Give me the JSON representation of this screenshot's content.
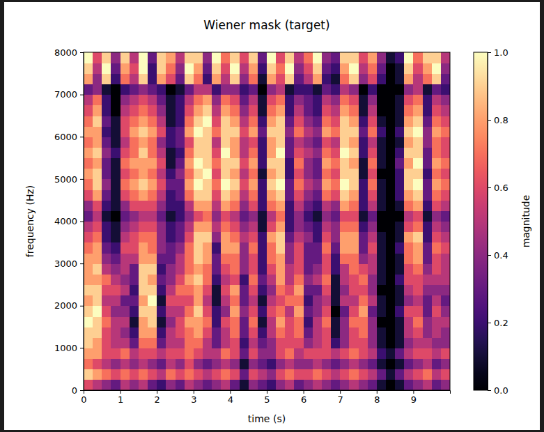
{
  "chart_data": {
    "type": "heatmap",
    "title": "Wiener mask (target)",
    "x_label": "time (s)",
    "y_label": "frequency (Hz)",
    "colorbar_label": "magnitude",
    "color": "magma",
    "xlim": [
      0,
      10
    ],
    "ylim": [
      0,
      8000
    ],
    "xticks": [
      0,
      1,
      2,
      3,
      4,
      5,
      6,
      7,
      8,
      9
    ],
    "yticks": [
      0,
      1000,
      2000,
      3000,
      4000,
      5000,
      6000,
      7000,
      8000
    ],
    "zlim": [
      0,
      1
    ],
    "zticks": [
      {
        "value": 0,
        "label": "0.0"
      },
      {
        "value": 0.2,
        "label": "0.2"
      },
      {
        "value": 0.4,
        "label": "0.4"
      },
      {
        "value": 0.6,
        "label": "0.6"
      },
      {
        "value": 0.8,
        "label": "0.8"
      },
      {
        "value": 1,
        "label": "1.0"
      }
    ],
    "x_edges": [
      0,
      0.25,
      0.5,
      0.75,
      1,
      1.25,
      1.5,
      1.75,
      2,
      2.25,
      2.5,
      2.75,
      3,
      3.25,
      3.5,
      3.75,
      4,
      4.25,
      4.5,
      4.75,
      5,
      5.25,
      5.5,
      5.75,
      6,
      6.25,
      6.5,
      6.75,
      7,
      7.25,
      7.5,
      7.75,
      8,
      8.25,
      8.5,
      8.75,
      9,
      9.25,
      9.5,
      9.75,
      10
    ],
    "y_edges": [
      0,
      250,
      500,
      750,
      1000,
      1250,
      1500,
      1750,
      2000,
      2250,
      2500,
      2750,
      3000,
      3250,
      3500,
      3750,
      4000,
      4250,
      4500,
      4750,
      5000,
      5250,
      5500,
      5750,
      6000,
      6250,
      6500,
      6750,
      7000,
      7250,
      7500,
      7750,
      8000
    ],
    "cells": [
      [
        0.6,
        0.5,
        0.4,
        0.3,
        0.5,
        0.4,
        0.5,
        0.3,
        0.2,
        0.4,
        0.3,
        0.5,
        0.4,
        0.3,
        0.4,
        0.5,
        0.3,
        0.1,
        0.4,
        0.3,
        0.2,
        0.4,
        0.5,
        0.3,
        0.4,
        0.5,
        0.4,
        0.3,
        0.4,
        0.5,
        0.4,
        0.3,
        0.1,
        0,
        0.1,
        0.3,
        0.4,
        0.5,
        0.3,
        0.4
      ],
      [
        0.9,
        0.8,
        0.7,
        0.6,
        0.7,
        0.6,
        0.7,
        0.6,
        0.5,
        0.7,
        0.6,
        0.7,
        0.6,
        0.5,
        0.6,
        0.7,
        0.6,
        0.3,
        0.6,
        0.5,
        0.4,
        0.6,
        0.7,
        0.6,
        0.6,
        0.7,
        0.6,
        0.5,
        0.6,
        0.7,
        0.6,
        0.5,
        0.3,
        0.1,
        0.3,
        0.5,
        0.6,
        0.7,
        0.5,
        0.6
      ],
      [
        0.7,
        0.6,
        0.5,
        0.4,
        0.5,
        0.4,
        0.5,
        0.4,
        0.3,
        0.5,
        0.4,
        0.6,
        0.4,
        0.3,
        0.4,
        0.5,
        0.4,
        0.1,
        0.4,
        0.3,
        0.2,
        0.4,
        0.5,
        0.4,
        0.4,
        0.5,
        0.4,
        0.3,
        0.4,
        0.5,
        0.4,
        0.3,
        0.1,
        0,
        0.1,
        0.3,
        0.4,
        0.5,
        0.3,
        0.4
      ],
      [
        0.8,
        0.8,
        0.6,
        0.6,
        0.7,
        0.5,
        0.6,
        0.6,
        0.5,
        0.6,
        0.6,
        0.7,
        0.6,
        0.5,
        0.5,
        0.7,
        0.6,
        0.3,
        0.6,
        0.4,
        0.4,
        0.6,
        0.7,
        0.5,
        0.6,
        0.6,
        0.6,
        0.5,
        0.6,
        0.7,
        0.6,
        0.5,
        0.2,
        0.1,
        0.3,
        0.5,
        0.6,
        0.6,
        0.5,
        0.6
      ],
      [
        0.9,
        0.8,
        0.6,
        0.5,
        0.5,
        0.3,
        0.7,
        0.7,
        0.3,
        0.5,
        0.5,
        0.7,
        0.7,
        0.5,
        0.3,
        0.5,
        0.6,
        0.2,
        0.5,
        0.3,
        0.4,
        0.6,
        0.6,
        0.6,
        0.4,
        0.5,
        0.6,
        0.2,
        0.4,
        0.6,
        0.6,
        0.4,
        0.1,
        0,
        0.1,
        0.4,
        0.5,
        0.5,
        0.4,
        0.4
      ],
      [
        0.9,
        0.9,
        0.6,
        0.5,
        0.4,
        0.2,
        0.8,
        0.8,
        0.2,
        0.5,
        0.6,
        0.7,
        0.8,
        0.6,
        0.3,
        0.5,
        0.7,
        0.3,
        0.6,
        0.2,
        0.5,
        0.7,
        0.6,
        0.7,
        0.3,
        0.5,
        0.6,
        0.1,
        0.4,
        0.6,
        0.7,
        0.4,
        0.1,
        0,
        0.1,
        0.5,
        0.6,
        0.4,
        0.5,
        0.4
      ],
      [
        1,
        0.9,
        0.7,
        0.5,
        0.5,
        0.1,
        0.8,
        0.9,
        0.1,
        0.4,
        0.6,
        0.8,
        0.8,
        0.7,
        0.2,
        0.6,
        0.7,
        0.3,
        0.7,
        0.1,
        0.5,
        0.8,
        0.6,
        0.7,
        0.2,
        0.5,
        0.7,
        0.1,
        0.4,
        0.7,
        0.7,
        0.4,
        0,
        0,
        0.1,
        0.5,
        0.7,
        0.4,
        0.5,
        0.5
      ],
      [
        0.9,
        1,
        0.6,
        0.4,
        0.4,
        0.2,
        0.9,
        0.9,
        0.2,
        0.5,
        0.5,
        0.7,
        0.9,
        0.6,
        0.2,
        0.4,
        0.8,
        0.4,
        0.6,
        0.2,
        0.6,
        0.7,
        0.5,
        0.8,
        0.3,
        0.4,
        0.6,
        0,
        0.3,
        0.6,
        0.8,
        0.3,
        0.1,
        0,
        0.2,
        0.6,
        0.6,
        0.3,
        0.6,
        0.4
      ],
      [
        0.8,
        0.9,
        0.5,
        0.5,
        0.3,
        0.3,
        0.8,
        1,
        0.1,
        0.6,
        0.6,
        0.6,
        0.8,
        0.5,
        0.1,
        0.5,
        0.7,
        0.3,
        0.5,
        0.1,
        0.5,
        0.6,
        0.7,
        0.7,
        0.2,
        0.4,
        0.5,
        0.1,
        0.5,
        0.5,
        0.7,
        0.5,
        0.1,
        0,
        0.1,
        0.4,
        0.5,
        0.3,
        0.5,
        0.3
      ],
      [
        0.9,
        0.9,
        0.6,
        0.6,
        0.5,
        0.2,
        0.9,
        0.9,
        0.2,
        0.5,
        0.7,
        0.7,
        0.8,
        0.6,
        0.1,
        0.6,
        0.8,
        0.3,
        0.6,
        0.2,
        0.4,
        0.7,
        0.6,
        0.8,
        0.3,
        0.3,
        0.6,
        0.1,
        0.4,
        0.6,
        0.6,
        0.4,
        0,
        0,
        0.1,
        0.5,
        0.6,
        0.4,
        0.4,
        0.4
      ],
      [
        0.8,
        0.8,
        0.7,
        0.5,
        0.4,
        0.3,
        0.9,
        0.8,
        0.3,
        0.4,
        0.6,
        0.8,
        0.9,
        0.7,
        0.2,
        0.5,
        0.6,
        0.2,
        0.7,
        0.3,
        0.5,
        0.8,
        0.5,
        0.7,
        0.4,
        0.5,
        0.7,
        0.1,
        0.5,
        0.6,
        0.7,
        0.4,
        0.1,
        0,
        0.2,
        0.6,
        0.6,
        0.5,
        0.5,
        0.5
      ],
      [
        0.8,
        0.9,
        0.5,
        0.4,
        0.5,
        0.3,
        0.9,
        0.9,
        0.2,
        0.4,
        0.5,
        0.7,
        0.8,
        0.7,
        0.3,
        0.6,
        0.7,
        0.4,
        0.6,
        0.2,
        0.6,
        0.8,
        0.5,
        0.6,
        0.3,
        0.4,
        0.6,
        0.2,
        0.5,
        0.7,
        0.6,
        0.5,
        0.1,
        0,
        0.1,
        0.6,
        0.7,
        0.4,
        0.6,
        0.5
      ],
      [
        0.8,
        0.8,
        0.4,
        0.3,
        0.5,
        0.5,
        0.8,
        0.8,
        0.3,
        0.3,
        0.5,
        0.7,
        0.9,
        0.8,
        0.3,
        0.7,
        0.7,
        0.4,
        0.6,
        0.2,
        0.7,
        0.8,
        0.4,
        0.6,
        0.3,
        0.3,
        0.6,
        0.2,
        0.7,
        0.7,
        0.4,
        0.5,
        0.1,
        0,
        0.1,
        0.7,
        0.8,
        0.3,
        0.6,
        0.5
      ],
      [
        0.7,
        0.8,
        0.3,
        0.2,
        0.6,
        0.6,
        0.8,
        0.7,
        0.4,
        0.3,
        0.4,
        0.7,
        0.9,
        0.8,
        0.2,
        0.8,
        0.8,
        0.4,
        0.7,
        0.2,
        0.7,
        0.9,
        0.4,
        0.6,
        0.3,
        0.3,
        0.7,
        0.3,
        0.8,
        0.8,
        0.3,
        0.6,
        0.1,
        0,
        0.2,
        0.7,
        0.8,
        0.3,
        0.7,
        0.6
      ],
      [
        0.6,
        0.7,
        0.2,
        0.1,
        0.5,
        0.6,
        0.7,
        0.7,
        0.4,
        0.2,
        0.3,
        0.6,
        0.9,
        0.9,
        0.4,
        0.8,
        0.7,
        0.5,
        0.6,
        0.2,
        0.8,
        0.9,
        0.3,
        0.5,
        0.4,
        0.2,
        0.6,
        0.4,
        0.8,
        0.8,
        0.3,
        0.5,
        0.1,
        0,
        0.1,
        0.8,
        0.9,
        0.2,
        0.6,
        0.5
      ],
      [
        0.5,
        0.6,
        0.2,
        0.1,
        0.4,
        0.5,
        0.6,
        0.6,
        0.4,
        0.2,
        0.3,
        0.5,
        0.8,
        0.8,
        0.5,
        0.7,
        0.6,
        0.4,
        0.5,
        0.1,
        0.6,
        0.8,
        0.2,
        0.4,
        0.3,
        0.2,
        0.5,
        0.4,
        0.7,
        0.7,
        0.2,
        0.4,
        0,
        0,
        0.1,
        0.6,
        0.7,
        0.2,
        0.5,
        0.4
      ],
      [
        0.3,
        0.5,
        0.1,
        0,
        0.3,
        0.4,
        0.5,
        0.5,
        0.3,
        0.1,
        0.2,
        0.4,
        0.6,
        0.7,
        0.4,
        0.6,
        0.5,
        0.3,
        0.4,
        0.1,
        0.5,
        0.7,
        0.2,
        0.4,
        0.2,
        0.1,
        0.4,
        0.3,
        0.6,
        0.6,
        0.1,
        0.3,
        0,
        0,
        0,
        0.5,
        0.6,
        0.1,
        0.4,
        0.3
      ],
      [
        0.4,
        0.6,
        0.2,
        0.1,
        0.4,
        0.6,
        0.6,
        0.6,
        0.4,
        0.2,
        0.2,
        0.5,
        0.8,
        0.8,
        0.5,
        0.8,
        0.7,
        0.4,
        0.6,
        0.2,
        0.7,
        0.8,
        0.2,
        0.5,
        0.3,
        0.2,
        0.5,
        0.4,
        0.8,
        0.7,
        0.2,
        0.5,
        0.1,
        0,
        0.1,
        0.7,
        0.8,
        0.2,
        0.6,
        0.5
      ],
      [
        0.6,
        0.8,
        0.3,
        0.1,
        0.6,
        0.7,
        0.8,
        0.7,
        0.5,
        0.2,
        0.3,
        0.7,
        0.9,
        0.9,
        0.6,
        0.9,
        0.8,
        0.5,
        0.7,
        0.2,
        0.8,
        0.9,
        0.3,
        0.6,
        0.4,
        0.3,
        0.7,
        0.6,
        0.9,
        0.8,
        0.2,
        0.6,
        0.1,
        0,
        0.2,
        0.8,
        0.9,
        0.3,
        0.7,
        0.6
      ],
      [
        0.7,
        0.9,
        0.4,
        0.1,
        0.7,
        0.8,
        0.9,
        0.8,
        0.6,
        0.3,
        0.3,
        0.8,
        1,
        0.9,
        0.7,
        1,
        0.9,
        0.6,
        0.8,
        0.2,
        0.9,
        1,
        0.3,
        0.7,
        0.5,
        0.4,
        0.8,
        0.7,
        1,
        0.9,
        0.2,
        0.7,
        0.1,
        0,
        0.2,
        0.9,
        1,
        0.3,
        0.8,
        0.7
      ],
      [
        0.8,
        0.9,
        0.3,
        0.1,
        0.6,
        0.7,
        0.8,
        0.7,
        0.5,
        0.2,
        0.4,
        0.7,
        0.9,
        1,
        0.6,
        0.9,
        0.8,
        0.5,
        0.7,
        0.1,
        0.8,
        0.9,
        0.2,
        0.6,
        0.4,
        0.3,
        0.7,
        0.6,
        0.9,
        0.9,
        0.1,
        0.6,
        0,
        0,
        0.2,
        0.9,
        0.9,
        0.2,
        0.7,
        0.6
      ],
      [
        0.7,
        0.8,
        0.3,
        0.1,
        0.7,
        0.8,
        0.8,
        0.8,
        0.6,
        0.1,
        0.3,
        0.8,
        1,
        0.9,
        0.7,
        0.9,
        0.9,
        0.6,
        0.8,
        0.2,
        0.9,
        0.9,
        0.2,
        0.7,
        0.4,
        0.3,
        0.8,
        0.7,
        0.9,
        0.8,
        0.1,
        0.7,
        0.1,
        0,
        0.3,
        0.8,
        1,
        0.3,
        0.8,
        0.7
      ],
      [
        0.8,
        0.9,
        0.4,
        0.2,
        0.6,
        0.7,
        0.9,
        0.7,
        0.5,
        0.1,
        0.2,
        0.7,
        0.9,
        0.9,
        0.6,
        1,
        0.8,
        0.5,
        0.7,
        0.2,
        0.8,
        1,
        0.3,
        0.6,
        0.5,
        0.4,
        0.7,
        0.6,
        1,
        0.9,
        0.2,
        0.6,
        0.1,
        0,
        0.2,
        0.9,
        0.9,
        0.3,
        0.7,
        0.6
      ],
      [
        0.7,
        0.8,
        0.3,
        0.1,
        0.5,
        0.7,
        0.8,
        0.7,
        0.4,
        0.2,
        0.3,
        0.6,
        0.9,
        0.9,
        0.5,
        0.9,
        0.8,
        0.5,
        0.6,
        0.2,
        0.8,
        0.9,
        0.3,
        0.5,
        0.4,
        0.3,
        0.6,
        0.5,
        0.9,
        0.8,
        0.2,
        0.5,
        0.1,
        0,
        0.1,
        0.8,
        0.9,
        0.4,
        0.7,
        0.6
      ],
      [
        0.8,
        0.8,
        0.2,
        0.1,
        0.6,
        0.8,
        0.9,
        0.8,
        0.6,
        0.2,
        0.3,
        0.8,
        1,
        0.9,
        0.7,
        0.9,
        0.9,
        0.6,
        0.8,
        0.3,
        0.9,
        0.9,
        0.4,
        0.7,
        0.5,
        0.4,
        0.8,
        0.7,
        0.9,
        0.9,
        0.3,
        0.7,
        0.2,
        0,
        0.2,
        0.9,
        1,
        0.4,
        0.8,
        0.7
      ],
      [
        0.7,
        0.9,
        0.3,
        0.1,
        0.6,
        0.7,
        0.8,
        0.7,
        0.5,
        0.1,
        0.2,
        0.7,
        0.9,
        1,
        0.6,
        0.9,
        0.8,
        0.5,
        0.7,
        0.2,
        0.8,
        0.9,
        0.3,
        0.6,
        0.4,
        0.3,
        0.7,
        0.6,
        0.9,
        0.8,
        0.2,
        0.6,
        0.1,
        0,
        0.1,
        0.8,
        0.9,
        0.3,
        0.7,
        0.6
      ],
      [
        0.6,
        0.8,
        0.2,
        0,
        0.5,
        0.6,
        0.7,
        0.6,
        0.4,
        0.1,
        0.2,
        0.6,
        0.8,
        0.9,
        0.5,
        0.8,
        0.7,
        0.4,
        0.6,
        0.1,
        0.7,
        0.8,
        0.2,
        0.5,
        0.3,
        0.2,
        0.6,
        0.5,
        0.8,
        0.7,
        0.1,
        0.5,
        0,
        0,
        0.1,
        0.7,
        0.8,
        0.2,
        0.6,
        0.5
      ],
      [
        0.5,
        0.7,
        0.2,
        0,
        0.4,
        0.5,
        0.6,
        0.5,
        0.3,
        0.1,
        0.2,
        0.5,
        0.7,
        0.8,
        0.4,
        0.7,
        0.6,
        0.3,
        0.5,
        0.1,
        0.6,
        0.7,
        0.2,
        0.4,
        0.3,
        0.2,
        0.5,
        0.4,
        0.7,
        0.6,
        0.1,
        0.4,
        0,
        0,
        0.1,
        0.6,
        0.7,
        0.2,
        0.5,
        0.4
      ],
      [
        0.3,
        0.4,
        0.1,
        0,
        0.2,
        0.3,
        0.4,
        0.3,
        0.2,
        0,
        0.1,
        0.3,
        0.5,
        0.5,
        0.2,
        0.4,
        0.4,
        0.2,
        0.3,
        0,
        0.4,
        0.5,
        0.1,
        0.2,
        0.2,
        0.1,
        0.3,
        0.2,
        0.5,
        0.4,
        0,
        0.2,
        0,
        0,
        0,
        0.4,
        0.5,
        0.1,
        0.3,
        0.2
      ],
      [
        0.8,
        0.4,
        0.9,
        0.2,
        0.7,
        0.5,
        0.9,
        0.2,
        0.8,
        0.6,
        0.3,
        0.9,
        0.7,
        0.2,
        0.8,
        0.5,
        0.9,
        0.4,
        0.7,
        0.1,
        0.8,
        0.6,
        0.9,
        0.3,
        0.5,
        0.8,
        0.2,
        0.1,
        0.7,
        0.9,
        0.4,
        0.6,
        0.2,
        0,
        0.1,
        0.8,
        0.5,
        0.7,
        0.9,
        0.3
      ],
      [
        0.9,
        0.5,
        1,
        0.3,
        0.8,
        0.6,
        1,
        0.2,
        0.9,
        0.7,
        0.4,
        1,
        0.8,
        0.3,
        0.9,
        0.6,
        1,
        0.5,
        0.8,
        0.2,
        0.9,
        0.7,
        1,
        0.4,
        0.6,
        0.9,
        0.3,
        0.2,
        0.8,
        1,
        0.5,
        0.7,
        0.3,
        0,
        0.1,
        0.9,
        0.6,
        0.8,
        1,
        0.4
      ],
      [
        1,
        0.6,
        0.9,
        0.4,
        0.9,
        0.5,
        1,
        0.3,
        0.9,
        0.8,
        0.5,
        0.9,
        0.9,
        0.4,
        1,
        0.7,
        0.9,
        0.6,
        0.9,
        0.3,
        1,
        0.6,
        0.9,
        0.5,
        0.7,
        1,
        0.4,
        0.3,
        0.9,
        0.9,
        0.6,
        0.8,
        0.4,
        0.1,
        0.2,
        1,
        0.7,
        0.9,
        0.9,
        0.5
      ]
    ]
  }
}
